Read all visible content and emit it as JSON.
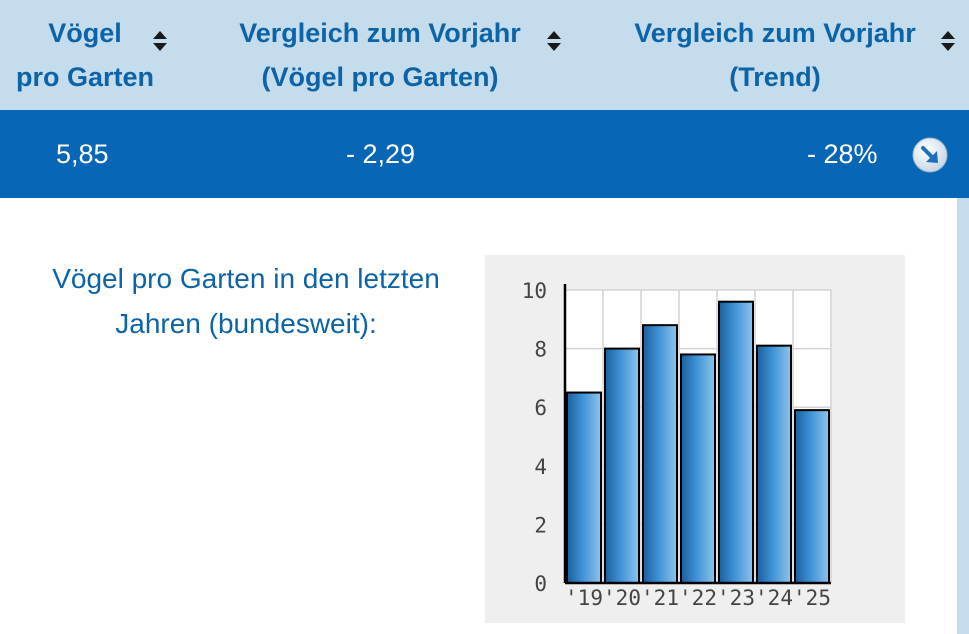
{
  "table": {
    "headers": [
      {
        "line1": "Vögel",
        "line2": "pro Garten"
      },
      {
        "line1": "Vergleich zum Vorjahr",
        "line2": "(Vögel pro Garten)"
      },
      {
        "line1": "Vergleich zum Vorjahr",
        "line2": "(Trend)"
      }
    ],
    "row": {
      "birds_per_garden": "5,85",
      "change_absolute": "- 2,29",
      "change_percent": "- 28%"
    },
    "trend_icon": "arrow-down-right-icon"
  },
  "caption": "Vögel pro Garten in den letzten Jahren (bundesweit):",
  "colors": {
    "header_bg": "#c5dcec",
    "header_text": "#0c63a8",
    "row_bg": "#0866b6",
    "bar_fill": "#3d92d6"
  },
  "chart_data": {
    "type": "bar",
    "title": "",
    "xlabel": "",
    "ylabel": "",
    "categories": [
      "'19",
      "'20",
      "'21",
      "'22",
      "'23",
      "'24",
      "'25"
    ],
    "values": [
      6.5,
      8.0,
      8.8,
      7.8,
      9.6,
      8.1,
      5.9
    ],
    "ylim": [
      0,
      10
    ],
    "yticks": [
      "0",
      "2",
      "4",
      "6",
      "8",
      "10"
    ],
    "grid": true
  }
}
